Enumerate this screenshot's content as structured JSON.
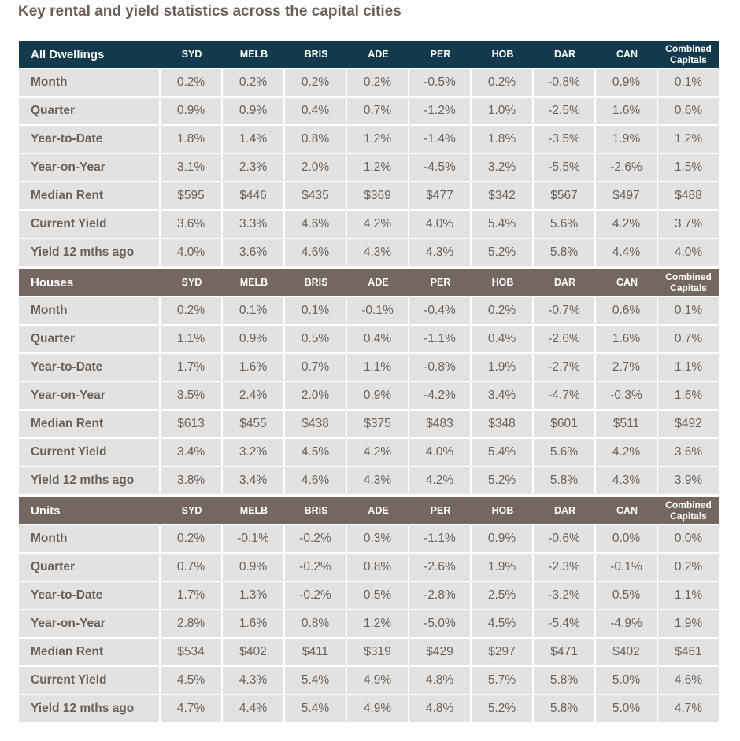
{
  "title": "Key rental and yield statistics across the capital cities",
  "columns": [
    "SYD",
    "MELB",
    "BRIS",
    "ADE",
    "PER",
    "HOB",
    "DAR",
    "CAN"
  ],
  "combined": [
    "Combined",
    "Capitals"
  ],
  "sections": [
    {
      "name": "All Dwellings",
      "rows": [
        {
          "label": "Month",
          "values": [
            "0.2%",
            "0.2%",
            "0.2%",
            "0.2%",
            "-0.5%",
            "0.2%",
            "-0.8%",
            "0.9%",
            "0.1%"
          ]
        },
        {
          "label": "Quarter",
          "values": [
            "0.9%",
            "0.9%",
            "0.4%",
            "0.7%",
            "-1.2%",
            "1.0%",
            "-2.5%",
            "1.6%",
            "0.6%"
          ]
        },
        {
          "label": "Year-to-Date",
          "values": [
            "1.8%",
            "1.4%",
            "0.8%",
            "1.2%",
            "-1.4%",
            "1.8%",
            "-3.5%",
            "1.9%",
            "1.2%"
          ]
        },
        {
          "label": "Year-on-Year",
          "values": [
            "3.1%",
            "2.3%",
            "2.0%",
            "1.2%",
            "-4.5%",
            "3.2%",
            "-5.5%",
            "-2.6%",
            "1.5%"
          ]
        },
        {
          "label": "Median Rent",
          "values": [
            "$595",
            "$446",
            "$435",
            "$369",
            "$477",
            "$342",
            "$567",
            "$497",
            "$488"
          ]
        },
        {
          "label": "Current Yield",
          "values": [
            "3.6%",
            "3.3%",
            "4.6%",
            "4.2%",
            "4.0%",
            "5.4%",
            "5.6%",
            "4.2%",
            "3.7%"
          ]
        },
        {
          "label": "Yield 12 mths ago",
          "values": [
            "4.0%",
            "3.6%",
            "4.6%",
            "4.3%",
            "4.3%",
            "5.2%",
            "5.8%",
            "4.4%",
            "4.0%"
          ]
        }
      ]
    },
    {
      "name": "Houses",
      "rows": [
        {
          "label": "Month",
          "values": [
            "0.2%",
            "0.1%",
            "0.1%",
            "-0.1%",
            "-0.4%",
            "0.2%",
            "-0.7%",
            "0.6%",
            "0.1%"
          ]
        },
        {
          "label": "Quarter",
          "values": [
            "1.1%",
            "0.9%",
            "0.5%",
            "0.4%",
            "-1.1%",
            "0.4%",
            "-2.6%",
            "1.6%",
            "0.7%"
          ]
        },
        {
          "label": "Year-to-Date",
          "values": [
            "1.7%",
            "1.6%",
            "0.7%",
            "1.1%",
            "-0.8%",
            "1.9%",
            "-2.7%",
            "2.7%",
            "1.1%"
          ]
        },
        {
          "label": "Year-on-Year",
          "values": [
            "3.5%",
            "2.4%",
            "2.0%",
            "0.9%",
            "-4.2%",
            "3.4%",
            "-4.7%",
            "-0.3%",
            "1.6%"
          ]
        },
        {
          "label": "Median Rent",
          "values": [
            "$613",
            "$455",
            "$438",
            "$375",
            "$483",
            "$348",
            "$601",
            "$511",
            "$492"
          ]
        },
        {
          "label": "Current Yield",
          "values": [
            "3.4%",
            "3.2%",
            "4.5%",
            "4.2%",
            "4.0%",
            "5.4%",
            "5.6%",
            "4.2%",
            "3.6%"
          ]
        },
        {
          "label": "Yield 12 mths ago",
          "values": [
            "3.8%",
            "3.4%",
            "4.6%",
            "4.3%",
            "4.2%",
            "5.2%",
            "5.8%",
            "4.3%",
            "3.9%"
          ]
        }
      ]
    },
    {
      "name": "Units",
      "rows": [
        {
          "label": "Month",
          "values": [
            "0.2%",
            "-0.1%",
            "-0.2%",
            "0.3%",
            "-1.1%",
            "0.9%",
            "-0.6%",
            "0.0%",
            "0.0%"
          ]
        },
        {
          "label": "Quarter",
          "values": [
            "0.7%",
            "0.9%",
            "-0.2%",
            "0.8%",
            "-2.6%",
            "1.9%",
            "-2.3%",
            "-0.1%",
            "0.2%"
          ]
        },
        {
          "label": "Year-to-Date",
          "values": [
            "1.7%",
            "1.3%",
            "-0.2%",
            "0.5%",
            "-2.8%",
            "2.5%",
            "-3.2%",
            "0.5%",
            "1.1%"
          ]
        },
        {
          "label": "Year-on-Year",
          "values": [
            "2.8%",
            "1.6%",
            "0.8%",
            "1.2%",
            "-5.0%",
            "4.5%",
            "-5.4%",
            "-4.9%",
            "1.9%"
          ]
        },
        {
          "label": "Median Rent",
          "values": [
            "$534",
            "$402",
            "$411",
            "$319",
            "$429",
            "$297",
            "$471",
            "$402",
            "$461"
          ]
        },
        {
          "label": "Current Yield",
          "values": [
            "4.5%",
            "4.3%",
            "5.4%",
            "4.9%",
            "4.8%",
            "5.7%",
            "5.8%",
            "5.0%",
            "4.6%"
          ]
        },
        {
          "label": "Yield 12 mths ago",
          "values": [
            "4.7%",
            "4.4%",
            "5.4%",
            "4.9%",
            "4.8%",
            "5.2%",
            "5.8%",
            "5.0%",
            "4.7%"
          ]
        }
      ]
    }
  ]
}
